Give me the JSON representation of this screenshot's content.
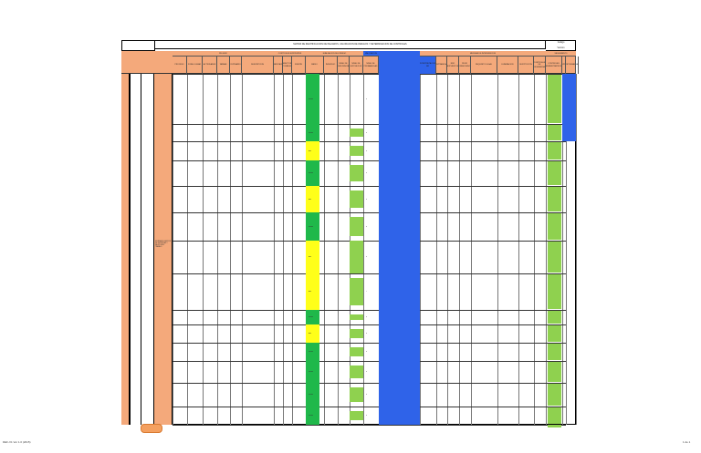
{
  "document": {
    "title": "MATRIZ DE IDENTIFICACION DE PELIGROS, VALORACION DE RIESGOS Y DETERMINACION DE CONTROLES",
    "code": "Codigo",
    "version": "Version",
    "footer_left": "DEF-V1 Ver 1.0 (2015)",
    "footer_right": "1 de 1",
    "process_label": "SISTEMA DE GESTION DE SEGURIDAD Y SALUD EN EL TRABAJO"
  },
  "groups": [
    {
      "label": "PELIGRO"
    },
    {
      "label": "CONTROLES EXISTENTES"
    },
    {
      "label": "EVALUACION DEL RIESGO"
    },
    {
      "label": "VALORACION"
    },
    {
      "label": "CRITERIOS PARA ESTABLECER CONTROLES"
    },
    {
      "label": "MEDIDAS DE INTERVENCION"
    },
    {
      "label": "SEGUIMIENTO"
    }
  ],
  "columns": [
    {
      "label": "PROCESO"
    },
    {
      "label": "ZONA / LUGAR"
    },
    {
      "label": "ACTIVIDADES"
    },
    {
      "label": "TAREAS"
    },
    {
      "label": "RUTINARIO"
    },
    {
      "label": "DESCRIPCION"
    },
    {
      "label": "CLASIFICACION"
    },
    {
      "label": "EFECTOS POSIBLES"
    },
    {
      "label": "FUENTE"
    },
    {
      "label": "MEDIO"
    },
    {
      "label": "INDIVIDUO"
    },
    {
      "label": "NIVEL DE DEFICIENCIA"
    },
    {
      "label": "NIVEL DE EXPOSICION"
    },
    {
      "label": "NIVEL DE PROBABILIDAD"
    },
    {
      "label": "INTERPRETACION"
    },
    {
      "label": "NIVEL DE CONSECUENCIA"
    },
    {
      "label": "NIVEL DE RIESGO"
    },
    {
      "label": "INTERPRETACION NR"
    },
    {
      "label": "ACEPTABILIDAD"
    },
    {
      "label": "NRO EXPUESTOS"
    },
    {
      "label": "PEOR CONSECUENCIA"
    },
    {
      "label": "REQUISITO LEGAL"
    },
    {
      "label": "ELIMINACION"
    },
    {
      "label": "SUSTITUCION"
    },
    {
      "label": "CONTROLES DE INGENIERIA"
    },
    {
      "label": "CONTROLES ADMINISTRATIVOS"
    },
    {
      "label": "EPP"
    },
    {
      "label": "RESPONSABLE"
    },
    {
      "label": "OBSERVACIONES"
    }
  ],
  "rows": [
    {
      "risk": "Medio",
      "level": "II"
    },
    {
      "risk": "Medio",
      "level": "II"
    },
    {
      "risk": "Alto",
      "level": "II"
    },
    {
      "risk": "Medio",
      "level": "II"
    },
    {
      "risk": "Alto",
      "level": "II"
    },
    {
      "risk": "Medio",
      "level": "II"
    },
    {
      "risk": "Alto",
      "level": "II"
    },
    {
      "risk": "Alto",
      "level": "I"
    },
    {
      "risk": "Medio",
      "level": "II"
    },
    {
      "risk": "Alto",
      "level": "II"
    },
    {
      "risk": "Medio",
      "level": "II"
    },
    {
      "risk": "Medio",
      "level": "II"
    },
    {
      "risk": "Medio",
      "level": "II"
    },
    {
      "risk": "Medio",
      "level": "II"
    },
    {
      "risk": "Medio",
      "level": "II"
    },
    {
      "risk": "Medio",
      "level": "II"
    }
  ],
  "colors": {
    "header": "#f4a97b",
    "green": "#1fb84a",
    "yellow": "#ffff19",
    "lightgreen": "#8fd14f",
    "blue": "#2f63e9"
  }
}
